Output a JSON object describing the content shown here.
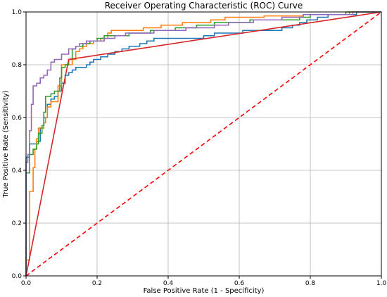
{
  "chart_data": {
    "type": "line",
    "title": "Receiver Operating Characteristic (ROC) Curve",
    "xlabel": "False Positive Rate (1 - Specificity)",
    "ylabel": "True Positive Rate (Sensitivity)",
    "xlim": [
      0,
      1
    ],
    "ylim": [
      0,
      1
    ],
    "xticks": [
      "0.0",
      "0.2",
      "0.4",
      "0.6",
      "0.8",
      "1.0"
    ],
    "yticks": [
      "0.0",
      "0.2",
      "0.4",
      "0.6",
      "0.8",
      "1.0"
    ],
    "grid": true,
    "series": [
      {
        "color": "#1f77b4",
        "style": "step",
        "points": [
          [
            0,
            0
          ],
          [
            0,
            0.45
          ],
          [
            0.01,
            0.45
          ],
          [
            0.01,
            0.5
          ],
          [
            0.03,
            0.5
          ],
          [
            0.03,
            0.51
          ],
          [
            0.04,
            0.51
          ],
          [
            0.04,
            0.56
          ],
          [
            0.05,
            0.56
          ],
          [
            0.05,
            0.6
          ],
          [
            0.06,
            0.6
          ],
          [
            0.06,
            0.65
          ],
          [
            0.07,
            0.65
          ],
          [
            0.07,
            0.67
          ],
          [
            0.08,
            0.67
          ],
          [
            0.08,
            0.68
          ],
          [
            0.09,
            0.68
          ],
          [
            0.09,
            0.7
          ],
          [
            0.1,
            0.7
          ],
          [
            0.1,
            0.73
          ],
          [
            0.11,
            0.73
          ],
          [
            0.11,
            0.76
          ],
          [
            0.12,
            0.76
          ],
          [
            0.12,
            0.77
          ],
          [
            0.13,
            0.77
          ],
          [
            0.13,
            0.78
          ],
          [
            0.14,
            0.78
          ],
          [
            0.14,
            0.79
          ],
          [
            0.17,
            0.79
          ],
          [
            0.17,
            0.8
          ],
          [
            0.18,
            0.8
          ],
          [
            0.18,
            0.81
          ],
          [
            0.19,
            0.81
          ],
          [
            0.19,
            0.82
          ],
          [
            0.21,
            0.82
          ],
          [
            0.21,
            0.83
          ],
          [
            0.23,
            0.83
          ],
          [
            0.23,
            0.84
          ],
          [
            0.25,
            0.84
          ],
          [
            0.25,
            0.85
          ],
          [
            0.27,
            0.85
          ],
          [
            0.27,
            0.86
          ],
          [
            0.29,
            0.86
          ],
          [
            0.29,
            0.87
          ],
          [
            0.32,
            0.87
          ],
          [
            0.32,
            0.88
          ],
          [
            0.34,
            0.88
          ],
          [
            0.34,
            0.89
          ],
          [
            0.36,
            0.89
          ],
          [
            0.36,
            0.9
          ],
          [
            0.5,
            0.9
          ],
          [
            0.5,
            0.91
          ],
          [
            0.53,
            0.91
          ],
          [
            0.53,
            0.92
          ],
          [
            0.61,
            0.92
          ],
          [
            0.61,
            0.93
          ],
          [
            0.72,
            0.93
          ],
          [
            0.72,
            0.94
          ],
          [
            0.75,
            0.94
          ],
          [
            0.75,
            0.95
          ],
          [
            0.77,
            0.95
          ],
          [
            0.77,
            0.96
          ],
          [
            0.79,
            0.96
          ],
          [
            0.79,
            0.97
          ],
          [
            0.82,
            0.97
          ],
          [
            0.82,
            0.98
          ],
          [
            0.85,
            0.98
          ],
          [
            0.85,
            0.99
          ],
          [
            0.93,
            0.99
          ],
          [
            0.93,
            1.0
          ],
          [
            1,
            1
          ]
        ]
      },
      {
        "color": "#ff7f0e",
        "style": "step",
        "points": [
          [
            0,
            0
          ],
          [
            0,
            0.06
          ],
          [
            0.01,
            0.06
          ],
          [
            0.01,
            0.32
          ],
          [
            0.02,
            0.32
          ],
          [
            0.02,
            0.41
          ],
          [
            0.025,
            0.41
          ],
          [
            0.025,
            0.48
          ],
          [
            0.03,
            0.48
          ],
          [
            0.03,
            0.52
          ],
          [
            0.035,
            0.52
          ],
          [
            0.035,
            0.56
          ],
          [
            0.05,
            0.56
          ],
          [
            0.05,
            0.58
          ],
          [
            0.055,
            0.58
          ],
          [
            0.055,
            0.6
          ],
          [
            0.06,
            0.6
          ],
          [
            0.06,
            0.64
          ],
          [
            0.07,
            0.64
          ],
          [
            0.07,
            0.66
          ],
          [
            0.09,
            0.66
          ],
          [
            0.09,
            0.72
          ],
          [
            0.1,
            0.72
          ],
          [
            0.1,
            0.8
          ],
          [
            0.13,
            0.8
          ],
          [
            0.13,
            0.82
          ],
          [
            0.14,
            0.82
          ],
          [
            0.14,
            0.85
          ],
          [
            0.15,
            0.85
          ],
          [
            0.15,
            0.86
          ],
          [
            0.16,
            0.86
          ],
          [
            0.16,
            0.87
          ],
          [
            0.17,
            0.87
          ],
          [
            0.17,
            0.88
          ],
          [
            0.19,
            0.88
          ],
          [
            0.19,
            0.89
          ],
          [
            0.21,
            0.89
          ],
          [
            0.21,
            0.9
          ],
          [
            0.23,
            0.9
          ],
          [
            0.23,
            0.92
          ],
          [
            0.24,
            0.92
          ],
          [
            0.24,
            0.93
          ],
          [
            0.33,
            0.93
          ],
          [
            0.33,
            0.94
          ],
          [
            0.38,
            0.94
          ],
          [
            0.38,
            0.95
          ],
          [
            0.44,
            0.95
          ],
          [
            0.44,
            0.96
          ],
          [
            0.52,
            0.96
          ],
          [
            0.52,
            0.97
          ],
          [
            0.56,
            0.97
          ],
          [
            0.56,
            0.98
          ],
          [
            0.67,
            0.98
          ],
          [
            0.67,
            0.985
          ],
          [
            0.78,
            0.985
          ],
          [
            0.78,
            0.99
          ],
          [
            0.91,
            0.99
          ],
          [
            0.91,
            1.0
          ],
          [
            1,
            1
          ]
        ]
      },
      {
        "color": "#2ca02c",
        "style": "step",
        "points": [
          [
            0,
            0
          ],
          [
            0,
            0.39
          ],
          [
            0.01,
            0.39
          ],
          [
            0.01,
            0.46
          ],
          [
            0.02,
            0.46
          ],
          [
            0.02,
            0.48
          ],
          [
            0.03,
            0.48
          ],
          [
            0.03,
            0.5
          ],
          [
            0.035,
            0.5
          ],
          [
            0.035,
            0.54
          ],
          [
            0.045,
            0.54
          ],
          [
            0.045,
            0.57
          ],
          [
            0.05,
            0.57
          ],
          [
            0.05,
            0.62
          ],
          [
            0.055,
            0.62
          ],
          [
            0.055,
            0.68
          ],
          [
            0.07,
            0.68
          ],
          [
            0.07,
            0.69
          ],
          [
            0.08,
            0.69
          ],
          [
            0.08,
            0.7
          ],
          [
            0.095,
            0.7
          ],
          [
            0.095,
            0.75
          ],
          [
            0.1,
            0.75
          ],
          [
            0.1,
            0.79
          ],
          [
            0.11,
            0.79
          ],
          [
            0.11,
            0.8
          ],
          [
            0.12,
            0.8
          ],
          [
            0.12,
            0.82
          ],
          [
            0.13,
            0.82
          ],
          [
            0.13,
            0.86
          ],
          [
            0.14,
            0.86
          ],
          [
            0.14,
            0.87
          ],
          [
            0.16,
            0.87
          ],
          [
            0.16,
            0.88
          ],
          [
            0.18,
            0.88
          ],
          [
            0.18,
            0.89
          ],
          [
            0.2,
            0.89
          ],
          [
            0.2,
            0.9
          ],
          [
            0.22,
            0.9
          ],
          [
            0.22,
            0.91
          ],
          [
            0.29,
            0.91
          ],
          [
            0.29,
            0.92
          ],
          [
            0.35,
            0.92
          ],
          [
            0.35,
            0.93
          ],
          [
            0.42,
            0.93
          ],
          [
            0.42,
            0.94
          ],
          [
            0.48,
            0.94
          ],
          [
            0.48,
            0.95
          ],
          [
            0.53,
            0.95
          ],
          [
            0.53,
            0.96
          ],
          [
            0.63,
            0.96
          ],
          [
            0.63,
            0.97
          ],
          [
            0.77,
            0.97
          ],
          [
            0.77,
            0.98
          ],
          [
            0.8,
            0.98
          ],
          [
            0.8,
            0.99
          ],
          [
            0.9,
            0.99
          ],
          [
            0.9,
            1.0
          ],
          [
            1,
            1
          ]
        ]
      },
      {
        "color": "#d62728",
        "style": "line",
        "points": [
          [
            0,
            0
          ],
          [
            0.12,
            0.82
          ],
          [
            1,
            1
          ]
        ]
      },
      {
        "color": "#9467bd",
        "style": "step",
        "points": [
          [
            0,
            0
          ],
          [
            0,
            0.43
          ],
          [
            0.005,
            0.43
          ],
          [
            0.005,
            0.46
          ],
          [
            0.01,
            0.46
          ],
          [
            0.01,
            0.55
          ],
          [
            0.015,
            0.55
          ],
          [
            0.015,
            0.65
          ],
          [
            0.02,
            0.65
          ],
          [
            0.02,
            0.72
          ],
          [
            0.03,
            0.72
          ],
          [
            0.03,
            0.73
          ],
          [
            0.04,
            0.73
          ],
          [
            0.04,
            0.75
          ],
          [
            0.05,
            0.75
          ],
          [
            0.05,
            0.76
          ],
          [
            0.06,
            0.76
          ],
          [
            0.06,
            0.78
          ],
          [
            0.07,
            0.78
          ],
          [
            0.07,
            0.81
          ],
          [
            0.08,
            0.81
          ],
          [
            0.08,
            0.82
          ],
          [
            0.1,
            0.82
          ],
          [
            0.1,
            0.84
          ],
          [
            0.12,
            0.84
          ],
          [
            0.12,
            0.86
          ],
          [
            0.14,
            0.86
          ],
          [
            0.14,
            0.87
          ],
          [
            0.15,
            0.87
          ],
          [
            0.15,
            0.88
          ],
          [
            0.17,
            0.88
          ],
          [
            0.17,
            0.89
          ],
          [
            0.22,
            0.89
          ],
          [
            0.22,
            0.9
          ],
          [
            0.25,
            0.9
          ],
          [
            0.25,
            0.91
          ],
          [
            0.28,
            0.91
          ],
          [
            0.28,
            0.92
          ],
          [
            0.36,
            0.92
          ],
          [
            0.36,
            0.93
          ],
          [
            0.45,
            0.93
          ],
          [
            0.45,
            0.94
          ],
          [
            0.53,
            0.94
          ],
          [
            0.53,
            0.95
          ],
          [
            0.57,
            0.95
          ],
          [
            0.57,
            0.96
          ],
          [
            0.64,
            0.96
          ],
          [
            0.64,
            0.97
          ],
          [
            0.72,
            0.97
          ],
          [
            0.72,
            0.98
          ],
          [
            0.78,
            0.98
          ],
          [
            0.78,
            0.99
          ],
          [
            0.92,
            0.99
          ],
          [
            0.92,
            1.0
          ],
          [
            1,
            1
          ]
        ]
      },
      {
        "color": "#ff0000",
        "style": "dashed",
        "points": [
          [
            0,
            0
          ],
          [
            1,
            1
          ]
        ]
      }
    ]
  }
}
